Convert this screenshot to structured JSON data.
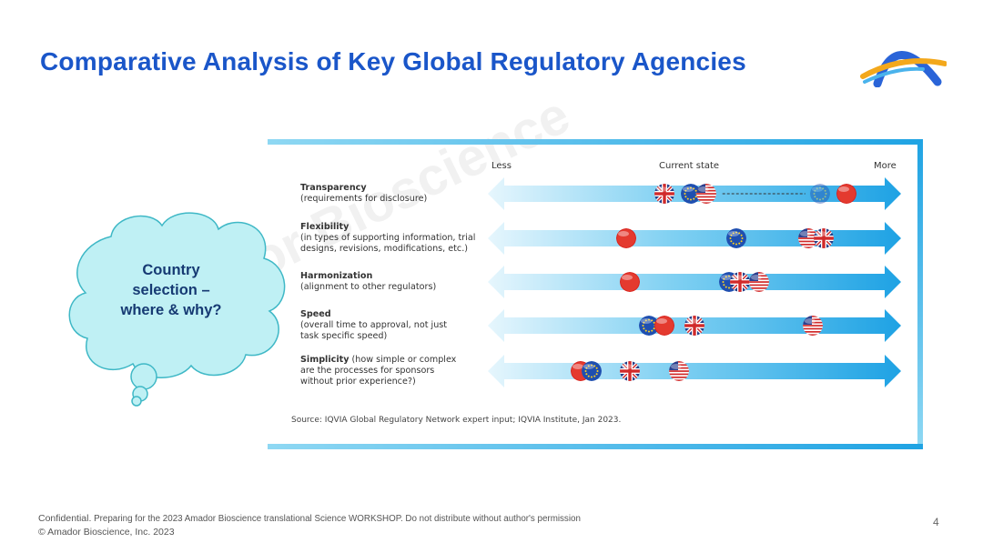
{
  "slide": {
    "title": "Comparative Analysis of Key Global Regulatory Agencies",
    "page_number": "4",
    "watermark": "Amador Bioscience"
  },
  "callout": {
    "line1": "Country",
    "line2": "selection –",
    "line3": "where & why?"
  },
  "scale": {
    "less": "Less",
    "current": "Current state",
    "more": "More"
  },
  "dimensions": [
    {
      "name": "Transparency",
      "desc": "(requirements for disclosure)",
      "flags": [
        {
          "c": "UK",
          "v": 0.42
        },
        {
          "c": "EU",
          "v": 0.49
        },
        {
          "c": "US",
          "v": 0.53
        },
        {
          "c": "EU",
          "v": 0.83,
          "faded": true
        },
        {
          "c": "CN",
          "v": 0.9
        }
      ],
      "arrow_from": 0.54,
      "arrow_to": 0.82
    },
    {
      "name": "Flexibility",
      "desc": "(in types of supporting information, trial designs, revisions, modifications, etc.)",
      "flags": [
        {
          "c": "CN",
          "v": 0.32
        },
        {
          "c": "EU",
          "v": 0.61
        },
        {
          "c": "US",
          "v": 0.8
        },
        {
          "c": "UK",
          "v": 0.84
        }
      ]
    },
    {
      "name": "Harmonization",
      "desc": "(alignment to other regulators)",
      "flags": [
        {
          "c": "CN",
          "v": 0.33
        },
        {
          "c": "EU",
          "v": 0.59
        },
        {
          "c": "UK",
          "v": 0.62
        },
        {
          "c": "US",
          "v": 0.67
        }
      ]
    },
    {
      "name": "Speed",
      "desc": "(overall time to approval, not just task specific speed)",
      "flags": [
        {
          "c": "EU",
          "v": 0.38
        },
        {
          "c": "CN",
          "v": 0.42
        },
        {
          "c": "UK",
          "v": 0.5
        },
        {
          "c": "US",
          "v": 0.81
        }
      ]
    },
    {
      "name": "Simplicity",
      "desc": "(how simple or complex are the processes for sponsors without prior experience?)",
      "flags": [
        {
          "c": "CN",
          "v": 0.2
        },
        {
          "c": "EU",
          "v": 0.23
        },
        {
          "c": "UK",
          "v": 0.33
        },
        {
          "c": "US",
          "v": 0.46
        }
      ]
    }
  ],
  "source": "Source: IQVIA Global Regulatory Network expert input; IQVIA Institute, Jan 2023.",
  "footer": {
    "line1_lead": "Confidential.",
    "line1_rest": " Preparing for the 2023 Amador Bioscience translational Science WORKSHOP. Do not distribute without author's permission",
    "line2": "© Amador Bioscience, Inc. 2023"
  },
  "colors": {
    "title": "#1a56c9",
    "arrow": "#29a9e6",
    "cloud_fill": "#bff0f4",
    "cloud_stroke": "#3fb8c6"
  }
}
